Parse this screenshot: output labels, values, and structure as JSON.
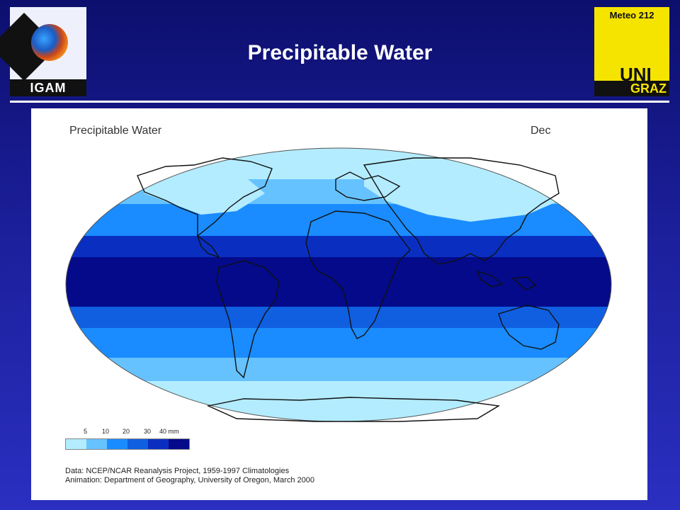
{
  "header": {
    "title": "Precipitable Water",
    "left_logo_text": "IGAM",
    "right_logo_top": "Meteo 212",
    "right_logo_uni": "UNI",
    "right_logo_graz": "GRAZ"
  },
  "figure": {
    "title": "Precipitable Water",
    "month": "Dec",
    "legend": {
      "labels": [
        "5",
        "10",
        "20",
        "30",
        "40 mm"
      ],
      "colors": [
        "#b3ecff",
        "#66c2ff",
        "#1a8cff",
        "#0f5fe0",
        "#0a2fc0",
        "#040a8a"
      ]
    },
    "credits": {
      "line1": "Data:  NCEP/NCAR Reanalysis Project, 1959-1997 Climatologies",
      "line2": "Animation:  Department of Geography, University of Oregon, March 2000"
    }
  }
}
